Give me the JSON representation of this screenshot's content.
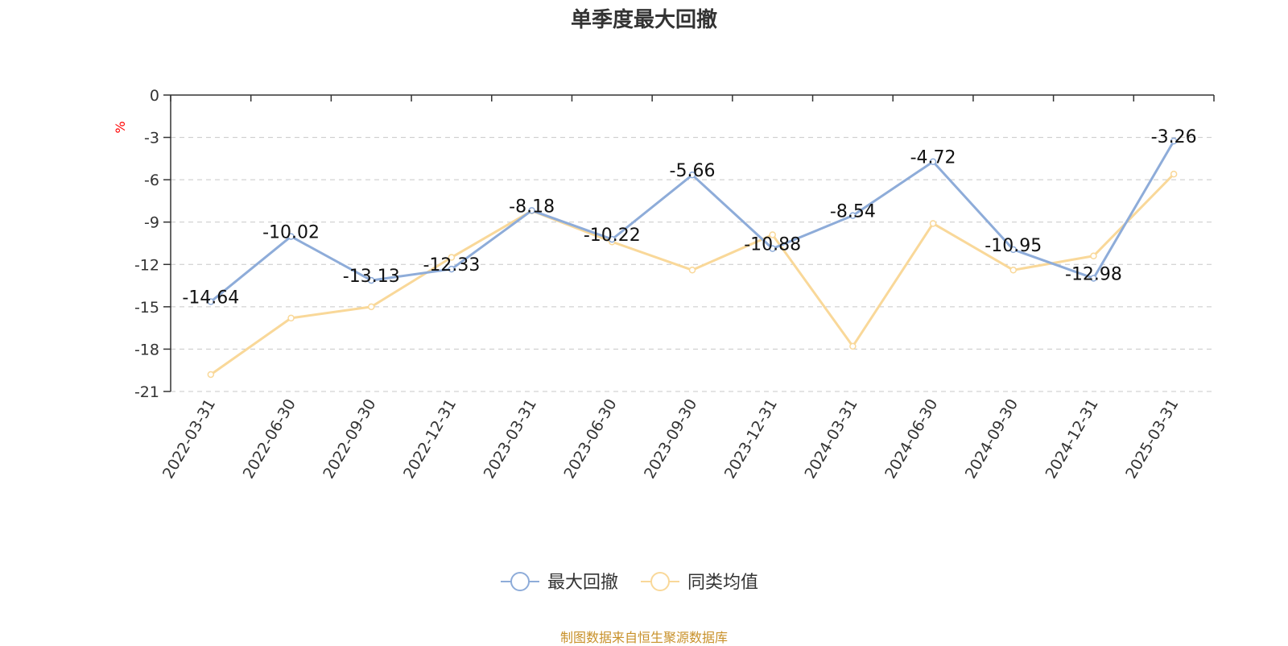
{
  "chart_title": "单季度最大回撤",
  "source_note": "制图数据来自恒生聚源数据库",
  "chart_data": {
    "type": "line",
    "title": "单季度最大回撤",
    "xlabel": "",
    "ylabel": "%",
    "ylim": [
      -21,
      0
    ],
    "yticks": [
      0,
      -3,
      -6,
      -9,
      -12,
      -15,
      -18,
      -21
    ],
    "grid": true,
    "legend_position": "bottom-center",
    "categories": [
      "2022-03-31",
      "2022-06-30",
      "2022-09-30",
      "2022-12-31",
      "2023-03-31",
      "2023-06-30",
      "2023-09-30",
      "2023-12-31",
      "2024-03-31",
      "2024-06-30",
      "2024-09-30",
      "2024-12-31",
      "2025-03-31"
    ],
    "series": [
      {
        "name": "最大回撤",
        "color": "#8eacd9",
        "values": [
          -14.64,
          -10.02,
          -13.13,
          -12.33,
          -8.18,
          -10.22,
          -5.66,
          -10.88,
          -8.54,
          -4.72,
          -10.95,
          -12.98,
          -3.26
        ],
        "labels": [
          "-14.64",
          "-10.02",
          "-13.13",
          "-12.33",
          "-8.18",
          "-10.22",
          "-5.66",
          "-10.88",
          "-8.54",
          "-4.72",
          "-10.95",
          "-12.98",
          "-3.26"
        ]
      },
      {
        "name": "同类均值",
        "color": "#f9d899",
        "values": [
          -19.8,
          -15.8,
          -15.0,
          -11.5,
          -8.2,
          -10.4,
          -12.4,
          -9.9,
          -17.8,
          -9.1,
          -12.4,
          -11.4,
          -5.6
        ]
      }
    ]
  },
  "colors": {
    "title": "#333333",
    "unit_label": "#ff0000",
    "source_note": "#c8912a",
    "grid": "#c8c8c8",
    "axis": "#333333"
  }
}
